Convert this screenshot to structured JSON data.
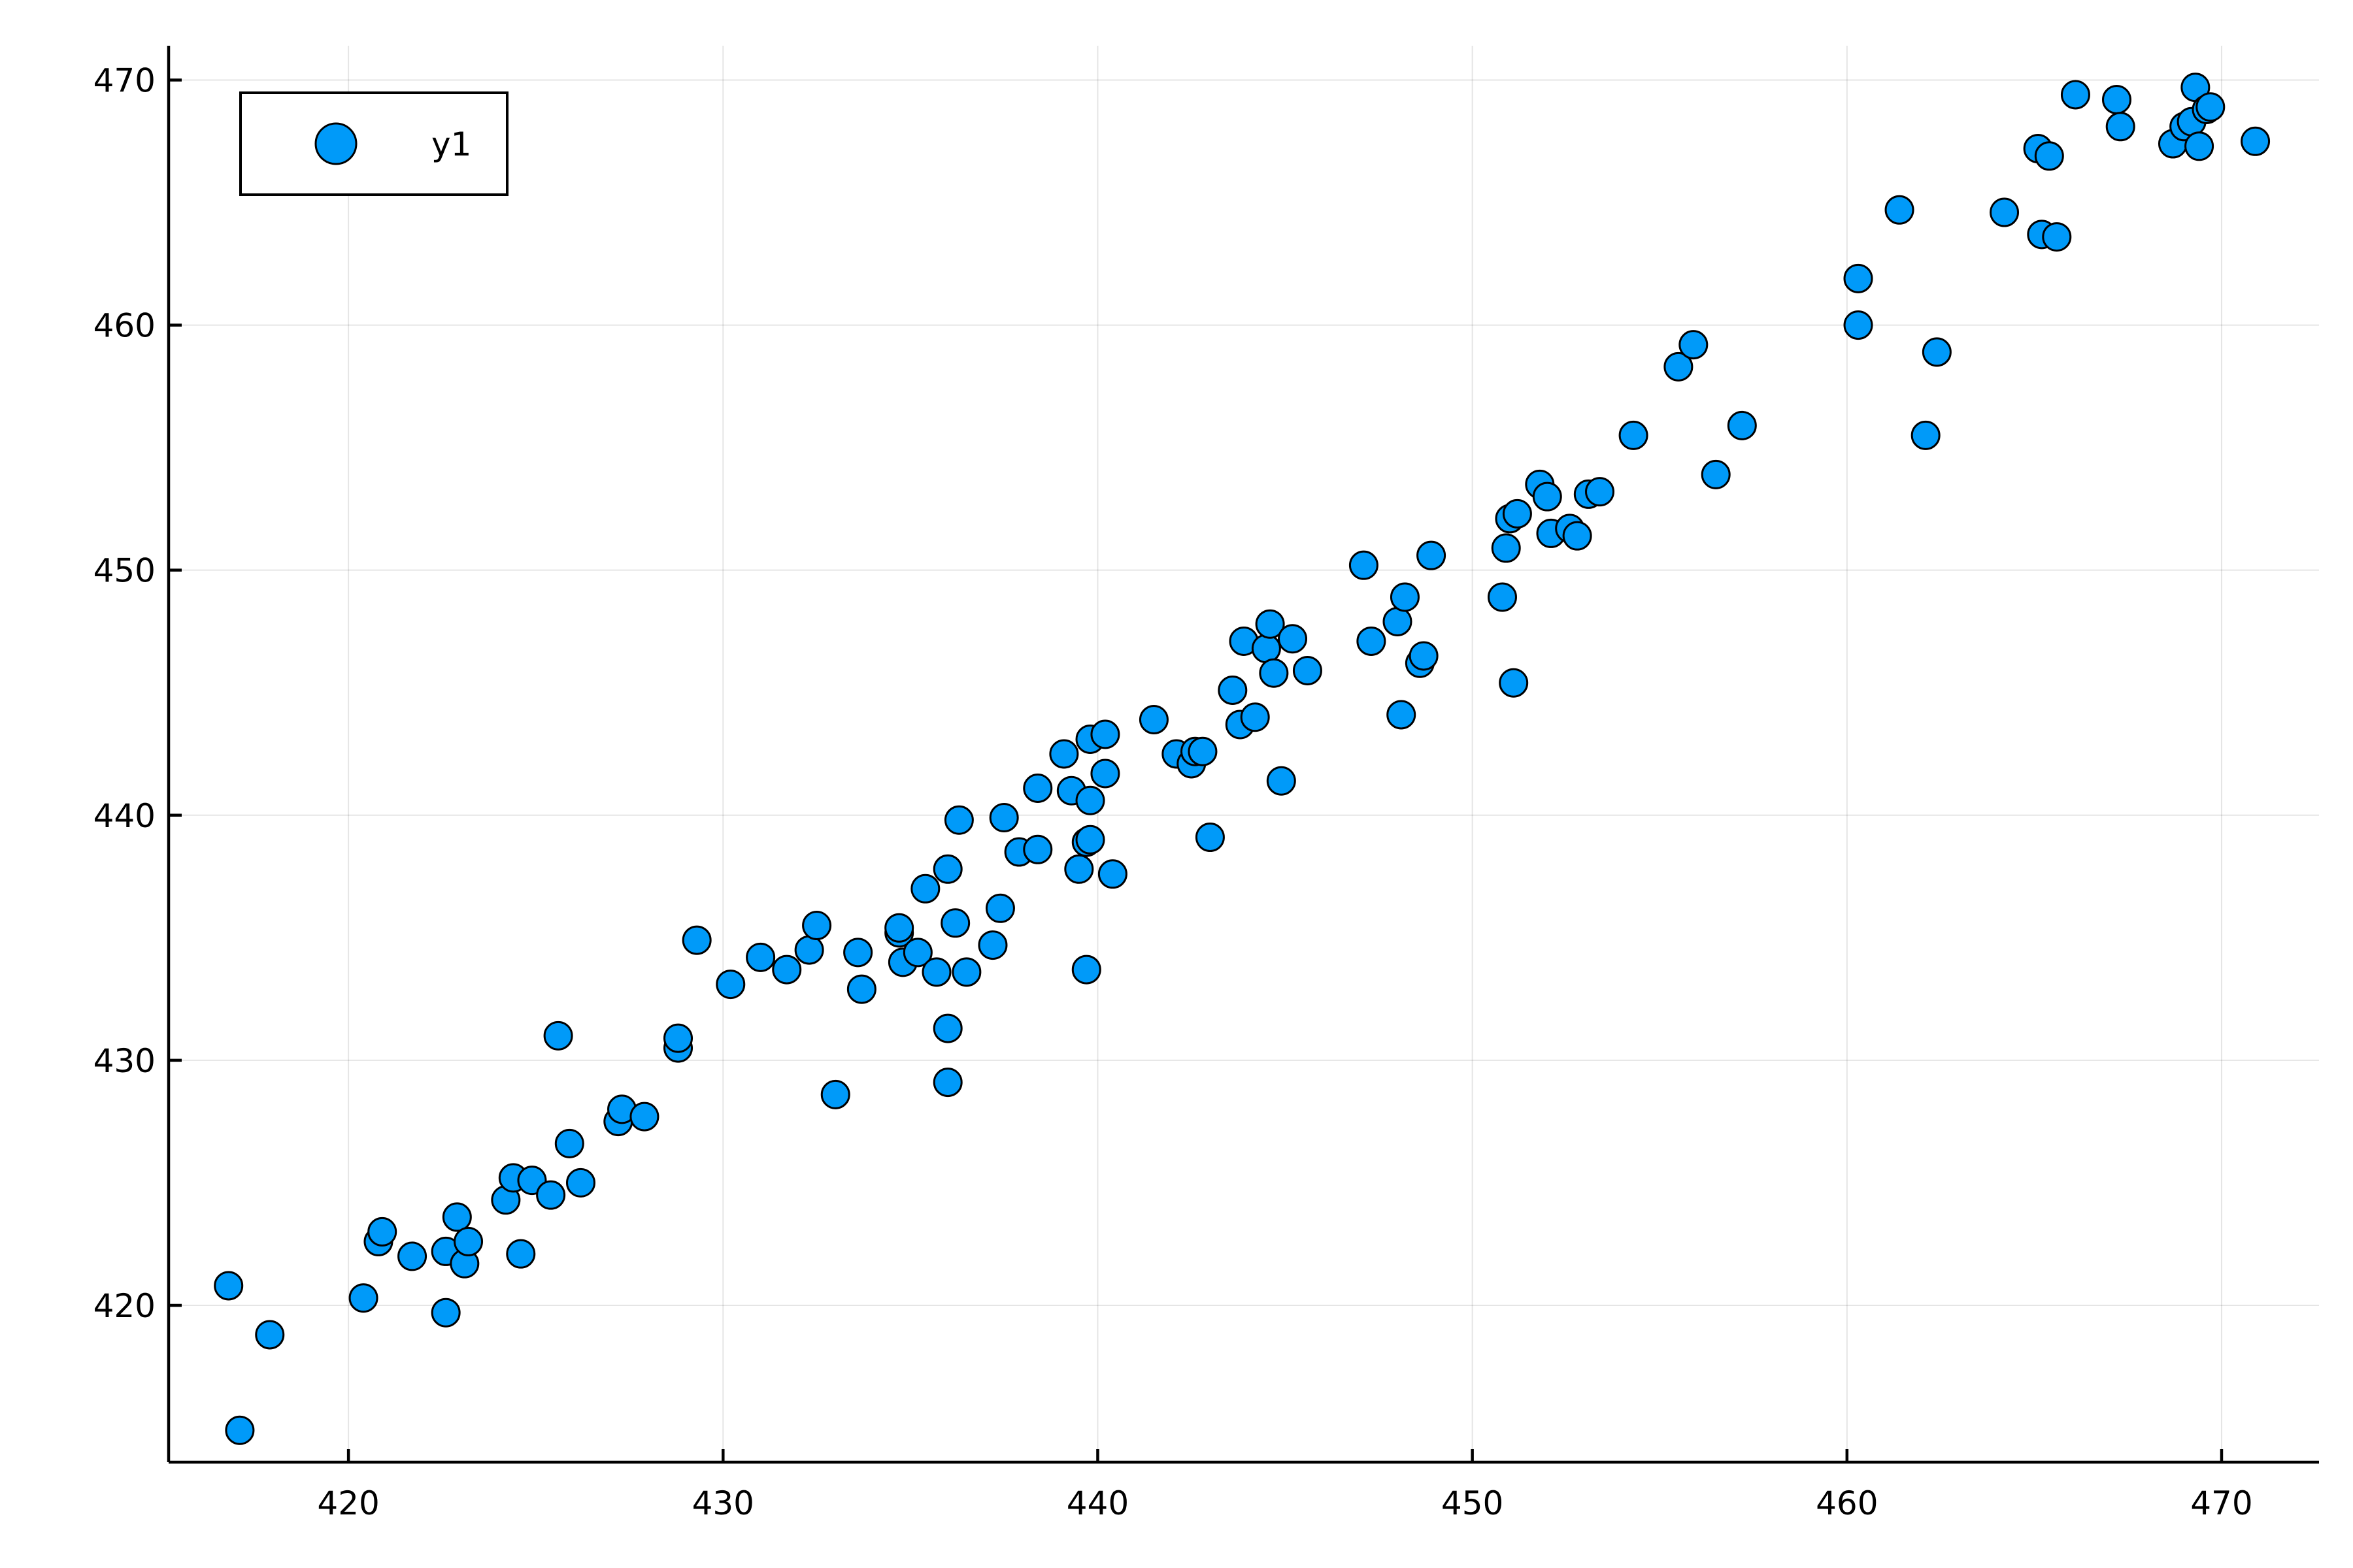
{
  "chart_data": {
    "type": "scatter",
    "title": "",
    "xlabel": "",
    "ylabel": "",
    "xlim": [
      415.2,
      472.6
    ],
    "ylim": [
      413.6,
      471.4
    ],
    "xticks": [
      420,
      430,
      440,
      450,
      460,
      470
    ],
    "yticks": [
      420,
      430,
      440,
      450,
      460,
      470
    ],
    "grid": true,
    "legend_position": "top-left",
    "series": [
      {
        "name": "y1",
        "color": "#009af9",
        "points": [
          [
            416.8,
            420.8
          ],
          [
            417.1,
            414.9
          ],
          [
            417.9,
            418.8
          ],
          [
            420.4,
            420.3
          ],
          [
            420.8,
            422.6
          ],
          [
            420.9,
            423.0
          ],
          [
            421.7,
            422.0
          ],
          [
            422.6,
            419.7
          ],
          [
            422.6,
            422.2
          ],
          [
            422.9,
            423.6
          ],
          [
            423.1,
            421.7
          ],
          [
            423.2,
            422.6
          ],
          [
            424.2,
            424.3
          ],
          [
            424.4,
            425.2
          ],
          [
            424.6,
            422.1
          ],
          [
            424.9,
            425.1
          ],
          [
            425.4,
            424.5
          ],
          [
            425.6,
            431.0
          ],
          [
            425.9,
            426.6
          ],
          [
            426.2,
            425.0
          ],
          [
            427.2,
            427.5
          ],
          [
            427.3,
            428.0
          ],
          [
            427.9,
            427.7
          ],
          [
            428.8,
            430.5
          ],
          [
            428.8,
            430.9
          ],
          [
            429.3,
            434.9
          ],
          [
            430.2,
            433.1
          ],
          [
            431.0,
            434.2
          ],
          [
            431.7,
            433.7
          ],
          [
            432.3,
            434.5
          ],
          [
            432.5,
            435.5
          ],
          [
            433.0,
            428.6
          ],
          [
            433.6,
            434.4
          ],
          [
            433.7,
            432.9
          ],
          [
            434.7,
            435.2
          ],
          [
            434.7,
            435.4
          ],
          [
            434.8,
            434.0
          ],
          [
            435.2,
            434.4
          ],
          [
            435.4,
            437.0
          ],
          [
            435.7,
            433.6
          ],
          [
            436.0,
            431.3
          ],
          [
            436.0,
            429.1
          ],
          [
            436.0,
            437.8
          ],
          [
            436.2,
            435.6
          ],
          [
            436.3,
            439.8
          ],
          [
            436.5,
            433.6
          ],
          [
            437.2,
            434.7
          ],
          [
            437.4,
            436.2
          ],
          [
            437.5,
            439.9
          ],
          [
            437.9,
            438.5
          ],
          [
            438.4,
            438.6
          ],
          [
            438.4,
            441.1
          ],
          [
            439.1,
            442.5
          ],
          [
            439.3,
            441.0
          ],
          [
            439.5,
            437.8
          ],
          [
            439.7,
            433.7
          ],
          [
            439.7,
            438.9
          ],
          [
            439.8,
            440.6
          ],
          [
            439.8,
            443.1
          ],
          [
            439.8,
            439.0
          ],
          [
            440.2,
            441.7
          ],
          [
            440.2,
            443.3
          ],
          [
            440.4,
            437.6
          ],
          [
            441.5,
            443.9
          ],
          [
            442.1,
            442.5
          ],
          [
            442.5,
            442.1
          ],
          [
            442.6,
            442.6
          ],
          [
            442.8,
            442.6
          ],
          [
            443.0,
            439.1
          ],
          [
            443.6,
            445.1
          ],
          [
            443.8,
            443.7
          ],
          [
            443.9,
            447.1
          ],
          [
            444.2,
            444.0
          ],
          [
            444.5,
            446.8
          ],
          [
            444.6,
            447.8
          ],
          [
            444.7,
            445.8
          ],
          [
            444.9,
            441.4
          ],
          [
            445.2,
            447.2
          ],
          [
            445.6,
            445.9
          ],
          [
            447.1,
            450.2
          ],
          [
            447.3,
            447.1
          ],
          [
            448.0,
            447.9
          ],
          [
            448.1,
            444.1
          ],
          [
            448.2,
            448.9
          ],
          [
            448.6,
            446.2
          ],
          [
            448.7,
            446.5
          ],
          [
            448.9,
            450.6
          ],
          [
            450.8,
            448.9
          ],
          [
            450.9,
            450.9
          ],
          [
            451.0,
            452.1
          ],
          [
            451.1,
            445.4
          ],
          [
            451.2,
            452.3
          ],
          [
            451.8,
            453.5
          ],
          [
            452.0,
            453.0
          ],
          [
            452.1,
            451.5
          ],
          [
            452.6,
            451.7
          ],
          [
            452.8,
            451.4
          ],
          [
            453.1,
            453.1
          ],
          [
            453.4,
            453.2
          ],
          [
            454.3,
            455.5
          ],
          [
            455.5,
            458.3
          ],
          [
            455.9,
            459.2
          ],
          [
            456.5,
            453.9
          ],
          [
            457.2,
            455.9
          ],
          [
            460.3,
            461.9
          ],
          [
            460.3,
            460.0
          ],
          [
            461.4,
            464.7
          ],
          [
            462.1,
            455.5
          ],
          [
            462.4,
            458.9
          ],
          [
            464.2,
            464.6
          ],
          [
            465.1,
            467.2
          ],
          [
            465.2,
            463.7
          ],
          [
            465.4,
            466.9
          ],
          [
            465.6,
            463.6
          ],
          [
            466.1,
            469.4
          ],
          [
            467.2,
            469.2
          ],
          [
            467.3,
            468.1
          ],
          [
            468.7,
            467.4
          ],
          [
            469.0,
            468.1
          ],
          [
            469.2,
            468.3
          ],
          [
            469.3,
            469.7
          ],
          [
            469.4,
            467.3
          ],
          [
            469.6,
            468.8
          ],
          [
            469.7,
            468.9
          ],
          [
            470.9,
            467.5
          ]
        ]
      }
    ]
  }
}
